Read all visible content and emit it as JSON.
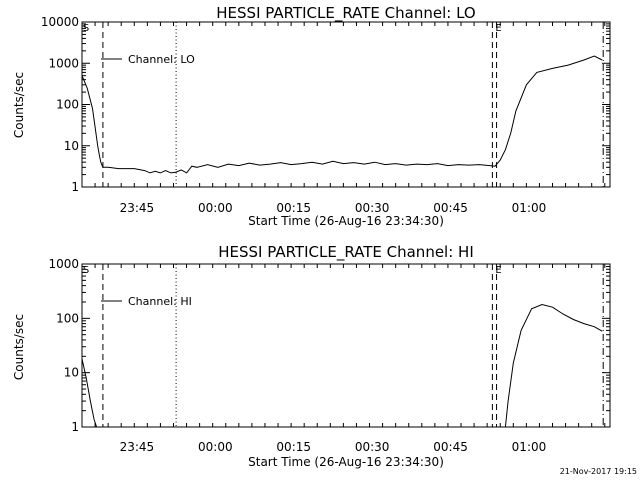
{
  "footer": {
    "timestamp": "21-Nov-2017 19:15"
  },
  "chart_data": [
    {
      "type": "line",
      "title": "HESSI PARTICLE_RATE Channel: LO",
      "xlabel": "Start Time (26-Aug-16 23:34:30)",
      "ylabel": "Counts/sec",
      "yscale": "log",
      "ylim": [
        1,
        10000
      ],
      "xlim_minutes_from_start": [
        0,
        101
      ],
      "x_ticks": [
        "23:45",
        "00:00",
        "00:15",
        "00:30",
        "00:45",
        "01:00"
      ],
      "y_ticks": [
        "1",
        "10",
        "100",
        "1000",
        "10000"
      ],
      "legend": "top-left",
      "series": [
        {
          "name": "Channel: LO",
          "x": [
            0,
            1,
            2,
            3,
            3.3,
            3.6,
            4,
            5,
            7,
            10,
            12,
            13,
            14,
            15,
            16,
            17,
            18,
            19,
            20,
            21,
            22,
            24,
            26,
            28,
            30,
            32,
            34,
            36,
            38,
            40,
            42,
            44,
            46,
            48,
            50,
            52,
            54,
            56,
            58,
            60,
            62,
            64,
            66,
            68,
            70,
            72,
            74,
            76,
            78,
            79,
            80,
            81,
            82,
            83,
            85,
            87,
            90,
            93,
            96,
            98,
            99.5
          ],
          "y": [
            500,
            250,
            80,
            10,
            6,
            4,
            3,
            3,
            2.8,
            2.8,
            2.5,
            2.2,
            2.4,
            2.2,
            2.5,
            2.2,
            2.3,
            2.6,
            2.2,
            3.2,
            3.0,
            3.5,
            3.0,
            3.6,
            3.3,
            3.8,
            3.4,
            3.6,
            3.9,
            3.5,
            3.7,
            4.0,
            3.6,
            4.2,
            3.7,
            3.9,
            3.6,
            4.0,
            3.5,
            3.7,
            3.4,
            3.6,
            3.5,
            3.7,
            3.3,
            3.5,
            3.4,
            3.5,
            3.3,
            3.2,
            4.5,
            8,
            20,
            70,
            300,
            600,
            750,
            900,
            1200,
            1500,
            1200
          ]
        }
      ],
      "vlines": [
        {
          "x": 4,
          "style": "dashed"
        },
        {
          "x": 18,
          "style": "dotted"
        },
        {
          "x": 78.5,
          "style": "dashed"
        },
        {
          "x": 79.3,
          "style": "dashed"
        },
        {
          "x": 99.7,
          "style": "dashdot"
        }
      ]
    },
    {
      "type": "line",
      "title": "HESSI PARTICLE_RATE Channel: HI",
      "xlabel": "Start Time (26-Aug-16 23:34:30)",
      "ylabel": "Counts/sec",
      "yscale": "log",
      "ylim": [
        1,
        1000
      ],
      "xlim_minutes_from_start": [
        0,
        101
      ],
      "x_ticks": [
        "23:45",
        "00:00",
        "00:15",
        "00:30",
        "00:45",
        "01:00"
      ],
      "y_ticks": [
        "1",
        "10",
        "100",
        "1000"
      ],
      "legend": "top-left",
      "series": [
        {
          "name": "Channel: HI",
          "x": [
            0,
            0.8,
            1.6,
            2.3,
            2.8,
            81,
            81.5,
            82.5,
            84,
            86,
            88,
            90,
            92,
            94,
            96,
            98,
            99.5
          ],
          "y": [
            18,
            8,
            3,
            1.4,
            1,
            1,
            3,
            15,
            60,
            150,
            180,
            160,
            120,
            95,
            80,
            70,
            58
          ]
        }
      ],
      "vlines": [
        {
          "x": 4,
          "style": "dashed"
        },
        {
          "x": 18,
          "style": "dotted"
        },
        {
          "x": 78.5,
          "style": "dashed"
        },
        {
          "x": 79.3,
          "style": "dashed"
        },
        {
          "x": 99.7,
          "style": "dashdot"
        }
      ]
    }
  ]
}
